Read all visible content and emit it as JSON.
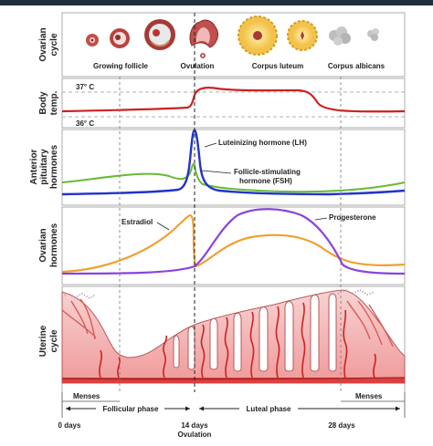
{
  "rows": {
    "ovarian_cycle": [
      "Ovarian",
      "cycle"
    ],
    "body_temp": [
      "Body",
      "temp."
    ],
    "anterior_pituitary": [
      "Anterior",
      "pituitary",
      "hormones"
    ],
    "ovarian_hormones": [
      "Ovarian",
      "hormones"
    ],
    "uterine_cycle": [
      "Uterine",
      "cycle"
    ]
  },
  "ovarian_labels": {
    "growing_follicle": "Growing follicle",
    "ovulation": "Ovulation",
    "corpus_luteum": "Corpus luteum",
    "corpus_albicans": "Corpus albicans"
  },
  "temperature": {
    "high": "37° C",
    "low": "36° C"
  },
  "pituitary_labels": {
    "lh": "Luteinizing hormone (LH)",
    "fsh_line1": "Follicle-stimulating",
    "fsh_line2": "hormone (FSH)"
  },
  "ovarian_hormone_labels": {
    "estradiol": "Estradiol",
    "progesterone": "Progesterone"
  },
  "phases": {
    "menses_left": "Menses",
    "follicular": "Follicular phase",
    "luteal": "Luteal phase",
    "menses_right": "Menses"
  },
  "axis": {
    "day0": "0 days",
    "day14": "14 days",
    "ovulation": "Ovulation",
    "day28": "28 days"
  },
  "colors": {
    "temperature": "#cc2222",
    "lh": "#2233cc",
    "fsh": "#66bb33",
    "estradiol": "#f0a030",
    "progesterone": "#8844dd",
    "endometrium": "#f4b8b8",
    "vessels": "#cc2222"
  }
}
